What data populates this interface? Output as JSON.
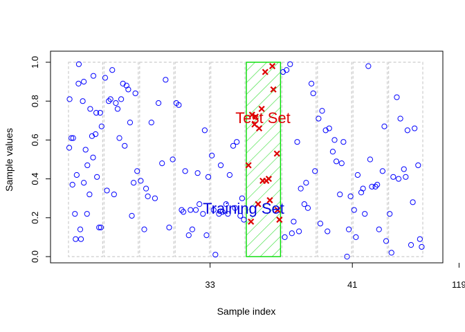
{
  "chart_data": {
    "type": "scatter",
    "xlabel": "Sample index",
    "ylabel": "Sample values",
    "ylim": [
      0.0,
      1.0
    ],
    "y_ticks": [
      "0.0",
      "0.2",
      "0.4",
      "0.6",
      "0.8",
      "1.0"
    ],
    "x_ticks": [
      {
        "label": "33",
        "at_fold": 4
      },
      {
        "label": "41",
        "at_fold": 8
      },
      {
        "label": "119",
        "at_fold": 11
      }
    ],
    "folds": 10,
    "test_fold": 6,
    "fold_box_color": "#cccccc",
    "test_fill_color": "#00dd00",
    "annotations": {
      "test_label": "Test Set",
      "test_color": "#dd0000",
      "train_label": "Training Set",
      "train_color": "#0000dd"
    },
    "series": [
      {
        "role": "training",
        "marker": "circle",
        "color": "#0000ff",
        "x": [
          0.04,
          0.13,
          0.22,
          0.3,
          0.37,
          0.45,
          0.54,
          0.63,
          0.71,
          0.82,
          0.91,
          0.1,
          0.2,
          0.31,
          0.42,
          0.5,
          0.61,
          0.72,
          0.8,
          0.93,
          0.15,
          0.25,
          0.35,
          0.45,
          0.55,
          0.68,
          0.78,
          0.88,
          0.05,
          0.95
        ],
        "y": [
          0.56,
          0.37,
          0.09,
          0.89,
          0.09,
          0.38,
          0.22,
          0.76,
          0.51,
          0.41,
          0.74,
          0.61,
          0.22,
          0.99,
          0.8,
          0.55,
          0.32,
          0.93,
          0.74,
          0.15,
          0.61,
          0.42,
          0.14,
          0.9,
          0.47,
          0.62,
          0.63,
          0.15,
          0.81,
          0.67
        ]
      },
      {
        "role": "training",
        "marker": "circle",
        "color": "#0000ff",
        "x": [
          1.05,
          1.15,
          1.25,
          1.35,
          1.45,
          1.55,
          1.65,
          1.75,
          1.85,
          1.95,
          1.1,
          1.3,
          1.5,
          1.7,
          1.9,
          1.2,
          1.4,
          1.6,
          1.8,
          2.05,
          2.15,
          2.25,
          2.35,
          2.45,
          2.55,
          2.65,
          2.75,
          2.85,
          2.95,
          2.2
        ],
        "y": [
          0.92,
          0.8,
          0.96,
          0.79,
          0.61,
          0.89,
          0.88,
          0.69,
          0.38,
          0.44,
          0.34,
          0.32,
          0.81,
          0.86,
          0.84,
          0.81,
          0.76,
          0.57,
          0.21,
          0.39,
          0.14,
          0.31,
          0.69,
          0.3,
          0.79,
          0.48,
          0.91,
          0.15,
          0.5,
          0.35
        ]
      },
      {
        "role": "training",
        "marker": "circle",
        "color": "#0000ff",
        "x": [
          3.05,
          3.12,
          3.2,
          3.3,
          3.4,
          3.5,
          3.6,
          3.7,
          3.8,
          3.9,
          3.25,
          3.45,
          3.65,
          3.85,
          3.95,
          4.05,
          4.15,
          4.25,
          4.35,
          4.45,
          4.55,
          4.65,
          4.75,
          4.85,
          4.95,
          4.1,
          4.3,
          4.5,
          4.7,
          4.9
        ],
        "y": [
          0.79,
          0.78,
          0.24,
          0.44,
          0.11,
          0.14,
          0.24,
          0.27,
          0.22,
          0.11,
          0.23,
          0.24,
          0.43,
          0.65,
          0.41,
          0.52,
          0.01,
          0.22,
          0.23,
          0.27,
          0.42,
          0.57,
          0.59,
          0.21,
          0.19,
          0.24,
          0.47,
          0.22,
          0.25,
          0.3
        ]
      },
      {
        "role": "test",
        "marker": "x",
        "color": "#dd0000",
        "x": [
          5.08,
          5.18,
          5.28,
          5.38,
          5.48,
          5.58,
          5.68,
          5.78,
          5.88,
          5.95,
          5.15,
          5.35,
          5.55,
          5.75,
          5.9,
          5.25,
          5.45,
          5.65
        ],
        "y": [
          0.47,
          0.73,
          0.72,
          0.66,
          0.39,
          0.39,
          0.29,
          0.86,
          0.53,
          0.19,
          0.18,
          0.27,
          0.95,
          0.98,
          0.24,
          0.68,
          0.76,
          0.4
        ]
      },
      {
        "role": "training",
        "marker": "circle",
        "color": "#0000ff",
        "x": [
          6.05,
          6.15,
          6.25,
          6.35,
          6.45,
          6.55,
          6.65,
          6.75,
          6.85,
          6.95,
          6.1,
          6.3,
          6.5,
          6.7,
          6.9,
          7.05,
          7.15,
          7.25,
          7.35,
          7.45,
          7.55,
          7.65,
          7.75,
          7.85,
          7.95,
          7.1,
          7.3,
          7.5,
          7.7,
          7.9
        ],
        "y": [
          0.95,
          0.96,
          0.99,
          0.18,
          0.59,
          0.35,
          0.27,
          0.25,
          0.89,
          0.44,
          0.1,
          0.12,
          0.13,
          0.38,
          0.84,
          0.71,
          0.75,
          0.65,
          0.66,
          0.54,
          0.49,
          0.32,
          0.59,
          0.0,
          0.31,
          0.17,
          0.13,
          0.6,
          0.48,
          0.14
        ]
      },
      {
        "role": "training",
        "marker": "circle",
        "color": "#0000ff",
        "x": [
          8.05,
          8.15,
          8.25,
          8.35,
          8.45,
          8.55,
          8.65,
          8.75,
          8.85,
          8.95,
          8.1,
          8.3,
          8.5,
          8.7,
          8.9,
          9.05,
          9.15,
          9.25,
          9.35,
          9.45,
          9.55,
          9.65,
          9.75,
          9.85,
          9.95,
          9.1,
          9.3,
          9.5,
          9.7,
          9.9
        ],
        "y": [
          0.24,
          0.42,
          0.33,
          0.22,
          0.98,
          0.36,
          0.36,
          0.14,
          0.44,
          0.08,
          0.1,
          0.35,
          0.5,
          0.37,
          0.67,
          0.22,
          0.41,
          0.82,
          0.71,
          0.45,
          0.65,
          0.06,
          0.66,
          0.47,
          0.05,
          0.02,
          0.4,
          0.41,
          0.28,
          0.09
        ]
      }
    ]
  }
}
